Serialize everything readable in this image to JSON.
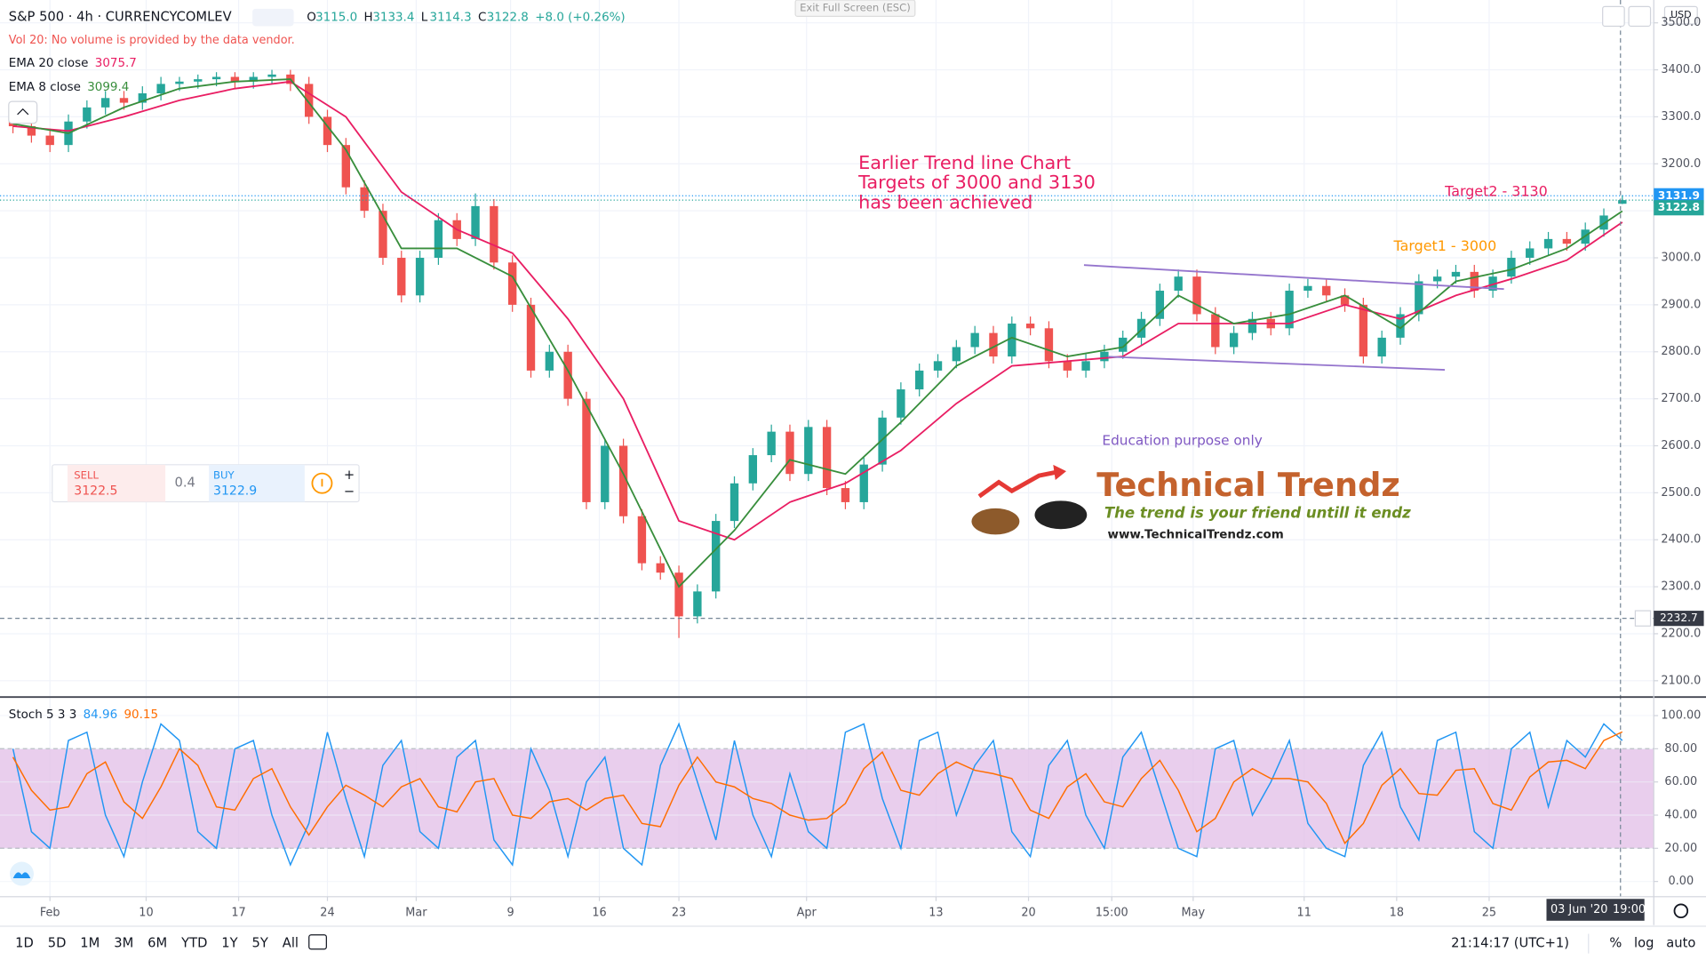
{
  "header": {
    "symbol": "S&P 500 · 4h · CURRENCYCOMLEV",
    "ohlc": [
      {
        "key": "O",
        "value": "3115.0"
      },
      {
        "key": "H",
        "value": "3133.4"
      },
      {
        "key": "L",
        "value": "3114.3"
      },
      {
        "key": "C",
        "value": "3122.8"
      }
    ],
    "change": "+8.0 (+0.26%)",
    "vol_note": "Vol 20: No volume is provided by the data vendor."
  },
  "exit_fullscreen": "Exit Full Screen (ESC)",
  "currency": "USD",
  "trade": {
    "sell_label": "SELL",
    "sell": "3122.5",
    "spread": "0.4",
    "buy_label": "BUY",
    "buy": "3122.9"
  },
  "notes": {
    "earlier": [
      "Earlier Trend line Chart",
      "Targets of 3000 and 3130",
      "has been achieved"
    ],
    "target2": "Target2 - 3130",
    "target1": "Target1 - 3000",
    "education": "Education purpose only"
  },
  "logo": {
    "title": "Technical Trendz",
    "tagline": "The trend is your friend untill it endz",
    "url": "www.TechnicalTrendz.com"
  },
  "toolbar": {
    "ranges": [
      "1D",
      "5D",
      "1M",
      "3M",
      "6M",
      "YTD",
      "1Y",
      "5Y",
      "All"
    ],
    "clock": "21:14:17 (UTC+1)",
    "percent": "%",
    "log": "log",
    "auto": "auto"
  },
  "chart_data": [
    {
      "type": "candlestick",
      "grid": true,
      "up_color": "#26a69a",
      "down_color": "#ef5350",
      "x": [
        -2,
        -1,
        0,
        1,
        2,
        3,
        4,
        5,
        6,
        7,
        8,
        9,
        10,
        11,
        12,
        13,
        14,
        15,
        16,
        17,
        18,
        19,
        20,
        21,
        22,
        23,
        24,
        25,
        26,
        27,
        28,
        29,
        30,
        31,
        32,
        33,
        34,
        35,
        36,
        37,
        38,
        39,
        40,
        41,
        42,
        43,
        44,
        45,
        46,
        47,
        48,
        49,
        50,
        51,
        52,
        53,
        54,
        55,
        56,
        57,
        58,
        59,
        60,
        61,
        62,
        63,
        64,
        65,
        66,
        67,
        68,
        69,
        70,
        71,
        72,
        73,
        74,
        75,
        76,
        77,
        78,
        79,
        80,
        81,
        82,
        83,
        84,
        85
      ],
      "open": [
        3290,
        3280,
        3260,
        3240,
        3290,
        3320,
        3340,
        3330,
        3350,
        3370,
        3375,
        3380,
        3385,
        3375,
        3385,
        3390,
        3370,
        3300,
        3240,
        3150,
        3100,
        3000,
        2920,
        3000,
        3080,
        3040,
        3110,
        2990,
        2900,
        2760,
        2800,
        2700,
        2480,
        2600,
        2450,
        2350,
        2330,
        2237,
        2290,
        2440,
        2520,
        2580,
        2630,
        2540,
        2640,
        2510,
        2480,
        2560,
        2660,
        2720,
        2760,
        2780,
        2810,
        2840,
        2790,
        2860,
        2850,
        2780,
        2760,
        2780,
        2800,
        2830,
        2870,
        2930,
        2960,
        2880,
        2810,
        2840,
        2870,
        2850,
        2930,
        2940,
        2920,
        2900,
        2790,
        2830,
        2880,
        2950,
        2960,
        2970,
        2930,
        2960,
        3000,
        3020,
        3040,
        3030,
        3060,
        3115
      ],
      "high": [
        3305,
        3295,
        3275,
        3305,
        3335,
        3355,
        3355,
        3365,
        3385,
        3385,
        3390,
        3395,
        3395,
        3395,
        3400,
        3400,
        3385,
        3315,
        3255,
        3165,
        3115,
        3015,
        3015,
        3095,
        3095,
        3137,
        3125,
        3005,
        2915,
        2815,
        2815,
        2715,
        2615,
        2615,
        2465,
        2365,
        2345,
        2305,
        2455,
        2535,
        2595,
        2645,
        2645,
        2655,
        2655,
        2525,
        2575,
        2675,
        2735,
        2775,
        2795,
        2825,
        2855,
        2855,
        2875,
        2875,
        2865,
        2795,
        2795,
        2815,
        2845,
        2885,
        2945,
        2975,
        2975,
        2895,
        2855,
        2885,
        2885,
        2945,
        2955,
        2955,
        2935,
        2915,
        2845,
        2895,
        2965,
        2975,
        2985,
        2985,
        2975,
        3015,
        3035,
        3055,
        3055,
        3075,
        3105,
        3133.4
      ],
      "low": [
        3265,
        3245,
        3225,
        3225,
        3275,
        3305,
        3315,
        3315,
        3335,
        3355,
        3360,
        3365,
        3360,
        3360,
        3370,
        3355,
        3285,
        3225,
        3135,
        3085,
        2985,
        2905,
        2905,
        2985,
        3025,
        3025,
        2975,
        2885,
        2745,
        2745,
        2685,
        2465,
        2465,
        2435,
        2335,
        2315,
        2191,
        2222,
        2275,
        2425,
        2505,
        2565,
        2525,
        2525,
        2495,
        2465,
        2465,
        2545,
        2645,
        2705,
        2745,
        2765,
        2795,
        2775,
        2775,
        2835,
        2765,
        2745,
        2745,
        2765,
        2785,
        2815,
        2855,
        2915,
        2865,
        2795,
        2795,
        2825,
        2835,
        2835,
        2915,
        2905,
        2885,
        2775,
        2775,
        2815,
        2865,
        2935,
        2945,
        2915,
        2915,
        2945,
        2985,
        3005,
        3015,
        3015,
        3045,
        3114.3
      ],
      "close": [
        3280,
        3260,
        3240,
        3290,
        3320,
        3340,
        3330,
        3350,
        3370,
        3375,
        3380,
        3385,
        3375,
        3385,
        3390,
        3370,
        3300,
        3240,
        3150,
        3100,
        3000,
        2920,
        3000,
        3080,
        3040,
        3110,
        2990,
        2900,
        2760,
        2800,
        2700,
        2480,
        2600,
        2450,
        2350,
        2330,
        2237,
        2290,
        2440,
        2520,
        2580,
        2630,
        2540,
        2640,
        2510,
        2480,
        2560,
        2660,
        2720,
        2760,
        2780,
        2810,
        2840,
        2790,
        2860,
        2850,
        2780,
        2760,
        2780,
        2800,
        2830,
        2870,
        2930,
        2960,
        2880,
        2810,
        2840,
        2870,
        2850,
        2930,
        2940,
        2920,
        2900,
        2790,
        2830,
        2880,
        2950,
        2960,
        2970,
        2930,
        2960,
        3000,
        3020,
        3040,
        3030,
        3060,
        3090,
        3122.8
      ],
      "series": [
        {
          "name": "EMA 20 close",
          "color": "#e91e63",
          "x": [
            -2,
            1,
            4,
            7,
            10,
            13,
            16,
            19,
            22,
            25,
            28,
            31,
            34,
            37,
            40,
            43,
            46,
            49,
            52,
            55,
            58,
            61,
            64,
            67,
            70,
            73,
            76,
            79,
            82,
            85
          ],
          "values": [
            3280,
            3270,
            3300,
            3335,
            3360,
            3375,
            3300,
            3140,
            3060,
            3010,
            2870,
            2700,
            2440,
            2400,
            2480,
            2520,
            2590,
            2690,
            2770,
            2780,
            2790,
            2860,
            2860,
            2860,
            2900,
            2870,
            2920,
            2955,
            2995,
            3075.7
          ]
        },
        {
          "name": "EMA 8 close",
          "color": "#388e3c",
          "x": [
            -2,
            1,
            4,
            7,
            10,
            13,
            16,
            19,
            22,
            25,
            28,
            31,
            34,
            37,
            40,
            43,
            46,
            49,
            52,
            55,
            58,
            61,
            64,
            67,
            70,
            73,
            76,
            79,
            82,
            85
          ],
          "values": [
            3285,
            3265,
            3320,
            3360,
            3375,
            3380,
            3230,
            3020,
            3020,
            2960,
            2760,
            2540,
            2300,
            2420,
            2570,
            2540,
            2650,
            2770,
            2830,
            2790,
            2810,
            2920,
            2860,
            2880,
            2920,
            2850,
            2950,
            2975,
            3020,
            3099.4
          ]
        }
      ],
      "trend_lines": [
        {
          "color": "#9575cd",
          "x": [
            55.9,
            78.6
          ],
          "y": [
            2984.5,
            2933.4
          ]
        },
        {
          "color": "#9575cd",
          "x": [
            57.2,
            75.4
          ],
          "y": [
            2789.5,
            2761.7
          ]
        }
      ],
      "price_lines": [
        {
          "value": 3131.9,
          "label": "3131.9",
          "color": "#2196f3"
        },
        {
          "value": 3122.8,
          "label": "3122.8",
          "color": "#26a69a"
        }
      ],
      "crosshair": {
        "value": 2232.7,
        "label": "2232.7",
        "x": 84.9,
        "x_label": "03 Jun '20",
        "x_time": "19:00"
      },
      "xlim": [
        -2.7,
        86.7
      ],
      "xticks": [
        {
          "value": 0,
          "label": "Feb"
        },
        {
          "value": 5.2,
          "label": "10"
        },
        {
          "value": 10.2,
          "label": "17"
        },
        {
          "value": 15.0,
          "label": "24"
        },
        {
          "value": 19.8,
          "label": "Mar"
        },
        {
          "value": 24.9,
          "label": "9"
        },
        {
          "value": 29.7,
          "label": "16"
        },
        {
          "value": 34.0,
          "label": "23"
        },
        {
          "value": 40.9,
          "label": "Apr"
        },
        {
          "value": 47.9,
          "label": "13"
        },
        {
          "value": 52.9,
          "label": "20"
        },
        {
          "value": 57.4,
          "label": "15:00"
        },
        {
          "value": 61.8,
          "label": "May"
        },
        {
          "value": 67.8,
          "label": "11"
        },
        {
          "value": 72.8,
          "label": "18"
        },
        {
          "value": 77.8,
          "label": "25"
        }
      ],
      "ylim": [
        2067.5,
        3548.6
      ],
      "yticks": [
        {
          "value": 2100,
          "label": "2100.0"
        },
        {
          "value": 2200,
          "label": "2200.0"
        },
        {
          "value": 2300,
          "label": "2300.0"
        },
        {
          "value": 2400,
          "label": "2400.0"
        },
        {
          "value": 2500,
          "label": "2500.0"
        },
        {
          "value": 2600,
          "label": "2600.0"
        },
        {
          "value": 2700,
          "label": "2700.0"
        },
        {
          "value": 2800,
          "label": "2800.0"
        },
        {
          "value": 2900,
          "label": "2900.0"
        },
        {
          "value": 3000,
          "label": "3000.0"
        },
        {
          "value": 3100,
          "label": "3100.0"
        },
        {
          "value": 3200,
          "label": "3200.0"
        },
        {
          "value": 3300,
          "label": "3300.0"
        },
        {
          "value": 3400,
          "label": "3400.0"
        },
        {
          "value": 3500,
          "label": "3500.0"
        }
      ]
    },
    {
      "type": "line",
      "title": "Stoch 5 3 3",
      "grid": true,
      "x": [
        -2,
        -1,
        0,
        1,
        2,
        3,
        4,
        5,
        6,
        7,
        8,
        9,
        10,
        11,
        12,
        13,
        14,
        15,
        16,
        17,
        18,
        19,
        20,
        21,
        22,
        23,
        24,
        25,
        26,
        27,
        28,
        29,
        30,
        31,
        32,
        33,
        34,
        35,
        36,
        37,
        38,
        39,
        40,
        41,
        42,
        43,
        44,
        45,
        46,
        47,
        48,
        49,
        50,
        51,
        52,
        53,
        54,
        55,
        56,
        57,
        58,
        59,
        60,
        61,
        62,
        63,
        64,
        65,
        66,
        67,
        68,
        69,
        70,
        71,
        72,
        73,
        74,
        75,
        76,
        77,
        78,
        79,
        80,
        81,
        82,
        83,
        84,
        85
      ],
      "series": [
        {
          "color": "#2196f3",
          "values": [
            80,
            30,
            20,
            85,
            90,
            40,
            15,
            60,
            95,
            85,
            30,
            20,
            80,
            85,
            40,
            10,
            35,
            90,
            50,
            15,
            70,
            85,
            30,
            20,
            75,
            85,
            25,
            10,
            80,
            55,
            15,
            60,
            75,
            20,
            10,
            70,
            95,
            60,
            25,
            85,
            40,
            15,
            65,
            30,
            20,
            90,
            95,
            50,
            20,
            85,
            90,
            40,
            70,
            85,
            30,
            15,
            70,
            85,
            40,
            20,
            75,
            90,
            55,
            20,
            15,
            80,
            85,
            40,
            60,
            85,
            35,
            20,
            15,
            70,
            90,
            45,
            25,
            85,
            90,
            30,
            20,
            80,
            90,
            45,
            85,
            75,
            95,
            84.96
          ]
        },
        {
          "color": "#ff6d00",
          "values": [
            75,
            55,
            43,
            45,
            65,
            72,
            48,
            38,
            57,
            80,
            70,
            45,
            43,
            62,
            68,
            45,
            28,
            45,
            58,
            52,
            45,
            57,
            62,
            45,
            42,
            60,
            62,
            40,
            38,
            48,
            50,
            43,
            50,
            52,
            35,
            33,
            58,
            75,
            60,
            57,
            50,
            47,
            40,
            37,
            38,
            47,
            68,
            78,
            55,
            52,
            65,
            72,
            67,
            65,
            62,
            43,
            38,
            57,
            65,
            48,
            45,
            62,
            73,
            55,
            30,
            38,
            60,
            68,
            62,
            62,
            60,
            47,
            23,
            35,
            58,
            68,
            53,
            52,
            67,
            68,
            47,
            43,
            63,
            72,
            73,
            68,
            85,
            90.15
          ]
        }
      ],
      "band": {
        "low": 20,
        "high": 80,
        "color": "#e1bee7"
      },
      "xlim": [
        -2.7,
        86.7
      ],
      "ylim": [
        -9.2,
        110.5
      ],
      "yticks": [
        {
          "value": 0,
          "label": "0.00"
        },
        {
          "value": 20,
          "label": "20.00"
        },
        {
          "value": 40,
          "label": "40.00"
        },
        {
          "value": 60,
          "label": "60.00"
        },
        {
          "value": 80,
          "label": "80.00"
        },
        {
          "value": 100,
          "label": "100.00"
        }
      ]
    }
  ]
}
